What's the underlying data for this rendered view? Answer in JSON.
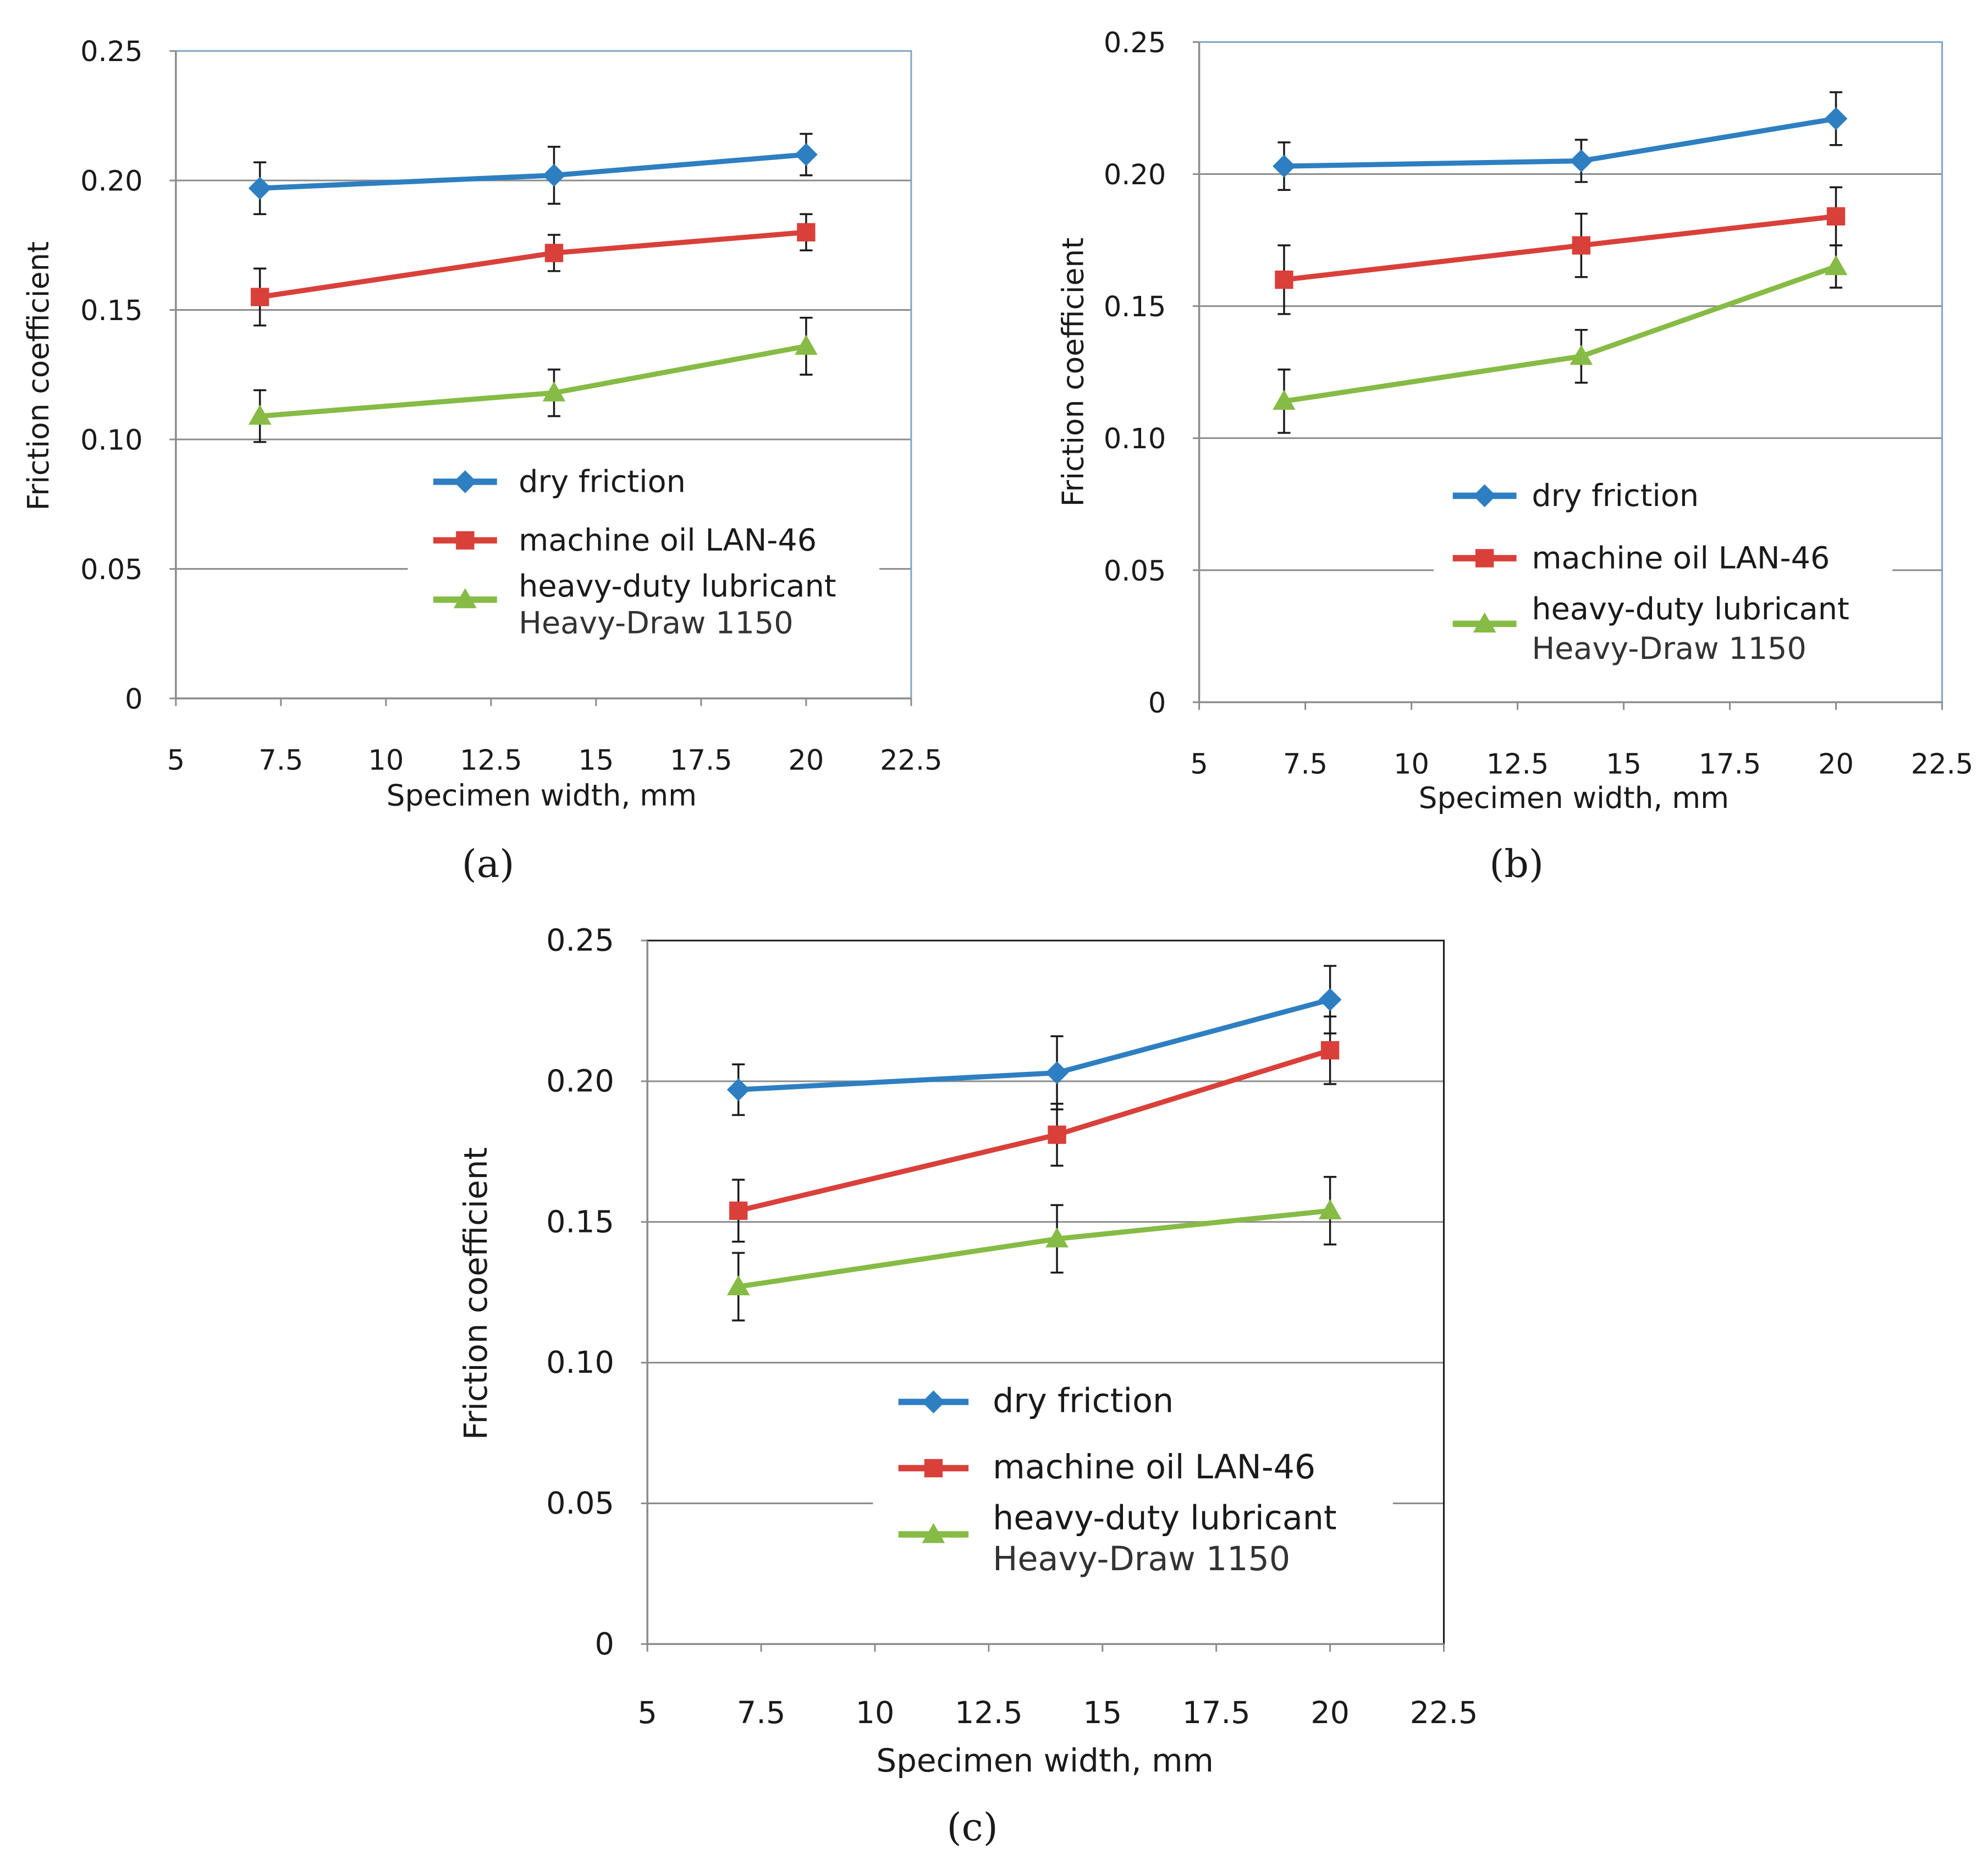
{
  "colors": {
    "dry": "#2e7fc1",
    "oil": "#d9403a",
    "heavy": "#86bb45",
    "grid": "#8c8c8c",
    "error": "#1a1a1a"
  },
  "chart_data": [
    {
      "type": "line",
      "panel_label": "(a)",
      "xlabel": "Specimen width, mm",
      "ylabel": "Friction coefficient",
      "xlim": [
        5,
        22.5
      ],
      "ylim": [
        0,
        0.25
      ],
      "xticks": [
        "5",
        "7.5",
        "10",
        "12.5",
        "15",
        "17.5",
        "20",
        "22.5"
      ],
      "yticks": [
        "0",
        "0.05",
        "0.10",
        "0.15",
        "0.20",
        "0.25"
      ],
      "grid": true,
      "legend_placement": "lower-center",
      "x": [
        7,
        14,
        20
      ],
      "series": [
        {
          "key": "dry",
          "name": "dry friction",
          "marker": "diamond",
          "values": [
            0.197,
            0.202,
            0.21
          ],
          "errors": [
            0.01,
            0.011,
            0.008
          ]
        },
        {
          "key": "oil",
          "name": "machine oil LAN-46",
          "marker": "square",
          "values": [
            0.155,
            0.172,
            0.18
          ],
          "errors": [
            0.011,
            0.007,
            0.007
          ]
        },
        {
          "key": "heavy",
          "name": "heavy-duty lubricant",
          "name2": "Heavy-Draw 1150",
          "marker": "triangle",
          "values": [
            0.109,
            0.118,
            0.136
          ],
          "errors": [
            0.01,
            0.009,
            0.011
          ]
        }
      ]
    },
    {
      "type": "line",
      "panel_label": "(b)",
      "xlabel": "Specimen width, mm",
      "ylabel": "Friction coefficient",
      "xlim": [
        5,
        22.5
      ],
      "ylim": [
        0,
        0.25
      ],
      "xticks": [
        "5",
        "7.5",
        "10",
        "12.5",
        "15",
        "17.5",
        "20",
        "22.5"
      ],
      "yticks": [
        "0",
        "0.05",
        "0.10",
        "0.15",
        "0.20",
        "0.25"
      ],
      "grid": true,
      "legend_placement": "lower-center",
      "x": [
        7,
        14,
        20
      ],
      "series": [
        {
          "key": "dry",
          "name": "dry friction",
          "marker": "diamond",
          "values": [
            0.203,
            0.205,
            0.221
          ],
          "errors": [
            0.009,
            0.008,
            0.01
          ]
        },
        {
          "key": "oil",
          "name": "machine oil LAN-46",
          "marker": "square",
          "values": [
            0.16,
            0.173,
            0.184
          ],
          "errors": [
            0.013,
            0.012,
            0.011
          ]
        },
        {
          "key": "heavy",
          "name": "heavy-duty lubricant",
          "name2": "Heavy-Draw 1150",
          "marker": "triangle",
          "values": [
            0.114,
            0.131,
            0.165
          ],
          "errors": [
            0.012,
            0.01,
            0.008
          ]
        }
      ]
    },
    {
      "type": "line",
      "panel_label": "(c)",
      "xlabel": "Specimen width, mm",
      "ylabel": "Friction coefficient",
      "xlim": [
        5,
        22.5
      ],
      "ylim": [
        0,
        0.25
      ],
      "xticks": [
        "5",
        "7.5",
        "10",
        "12.5",
        "15",
        "17.5",
        "20",
        "22.5"
      ],
      "yticks": [
        "0",
        "0.05",
        "0.10",
        "0.15",
        "0.20",
        "0.25"
      ],
      "grid": true,
      "legend_placement": "lower-center",
      "x": [
        7,
        14,
        20
      ],
      "series": [
        {
          "key": "dry",
          "name": "dry friction",
          "marker": "diamond",
          "values": [
            0.197,
            0.203,
            0.229
          ],
          "errors": [
            0.009,
            0.013,
            0.012
          ]
        },
        {
          "key": "oil",
          "name": "machine oil LAN-46",
          "marker": "square",
          "values": [
            0.154,
            0.181,
            0.211
          ],
          "errors": [
            0.011,
            0.011,
            0.012
          ]
        },
        {
          "key": "heavy",
          "name": "heavy-duty lubricant",
          "name2": "Heavy-Draw 1150",
          "marker": "triangle",
          "values": [
            0.127,
            0.144,
            0.154
          ],
          "errors": [
            0.012,
            0.012,
            0.012
          ]
        }
      ]
    }
  ]
}
